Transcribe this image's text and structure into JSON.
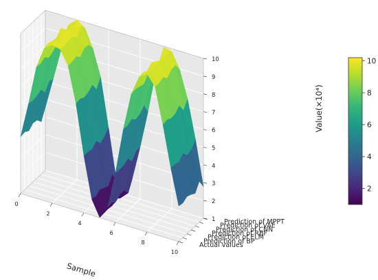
{
  "chart_data": {
    "type": "surface-3d",
    "title": "",
    "xlabel": "Sample",
    "zlabel": "Value(×10⁴)",
    "x_ticks": [
      "0",
      "2",
      "4",
      "6",
      "8",
      "10"
    ],
    "z_ticks": [
      "1",
      "2",
      "3",
      "4",
      "5",
      "6",
      "7",
      "8",
      "9",
      "10"
    ],
    "series_axis": [
      "Actual values",
      "Prediction of BP",
      "Prediction of ELM",
      "Prediction of RBF",
      "Prediction of CNN",
      "Prediction of VAE",
      "Prediction of MPPT"
    ],
    "xlim": [
      0,
      10
    ],
    "zlim": [
      1,
      10
    ],
    "x": [
      0,
      0.5,
      1,
      1.5,
      2,
      2.5,
      3,
      3.5,
      4,
      4.5,
      5,
      5.5,
      6,
      6.5,
      7,
      7.5,
      8,
      8.5,
      9,
      9.5,
      10
    ],
    "surface_profile_at_series_0": [
      4.2,
      6.2,
      8.4,
      9.6,
      9.9,
      9.8,
      9.0,
      7.0,
      4.2,
      1.9,
      1.0,
      1.7,
      3.8,
      6.4,
      8.5,
      9.6,
      9.9,
      9.3,
      7.3,
      5.0,
      3.0
    ],
    "colorbar_ticks": [
      "2",
      "4",
      "6",
      "8",
      "10"
    ],
    "colorbar_range": [
      1,
      10.2
    ],
    "colormap": [
      "#440154",
      "#482878",
      "#3e4989",
      "#31688e",
      "#26828e",
      "#1f9e89",
      "#35b779",
      "#6ece58",
      "#b5de2b",
      "#fde725"
    ],
    "grid": true,
    "colorbar_position": "right"
  }
}
